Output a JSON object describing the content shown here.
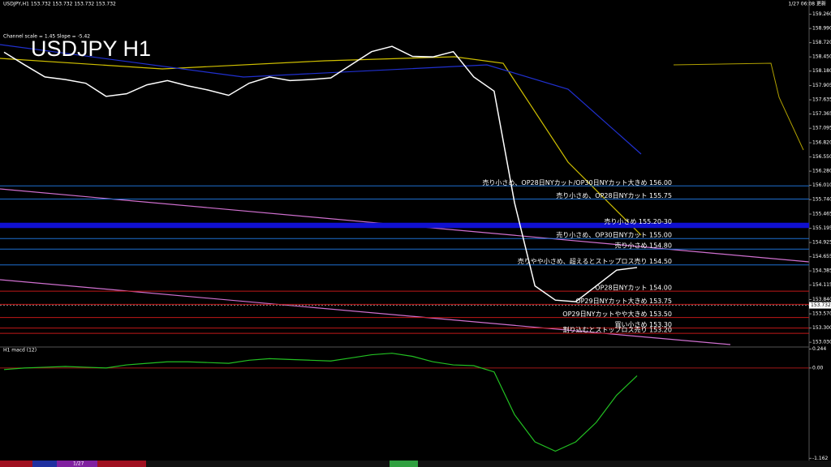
{
  "chart_data": {
    "type": "line",
    "title": "USDJPY H1",
    "header": "USDJPY,H1 153.732 153.732 153.732 153.732",
    "timestamp": "1/27 06:08 更新",
    "channel_note": "Channel scale = 1.45 Slope = -5.42",
    "date_label": "1/27",
    "color": "#ffffff",
    "values": [
      158.54,
      158.3,
      158.07,
      158.02,
      157.95,
      157.7,
      157.75,
      157.92,
      158.0,
      157.9,
      157.82,
      157.72,
      157.95,
      158.07,
      158.0,
      158.02,
      158.05,
      158.3,
      158.55,
      158.65,
      158.46,
      158.45,
      158.55,
      158.07,
      157.8,
      155.68,
      154.1,
      153.83,
      153.8,
      154.1,
      154.4,
      154.45
    ],
    "ylim": [
      152.94,
      159.5
    ],
    "yticks": [
      {
        "value": 153.03,
        "label": "153.030"
      },
      {
        "value": 153.3,
        "label": "153.300"
      },
      {
        "value": 153.57,
        "label": "153.570"
      },
      {
        "value": 153.84,
        "label": "153.840"
      },
      {
        "value": 154.115,
        "label": "154.115"
      },
      {
        "value": 154.385,
        "label": "154.385"
      },
      {
        "value": 154.655,
        "label": "154.655"
      },
      {
        "value": 154.925,
        "label": "154.925"
      },
      {
        "value": 155.195,
        "label": "155.195"
      },
      {
        "value": 155.465,
        "label": "155.465"
      },
      {
        "value": 155.74,
        "label": "155.740"
      },
      {
        "value": 156.01,
        "label": "156.010"
      },
      {
        "value": 156.28,
        "label": "156.280"
      },
      {
        "value": 156.55,
        "label": "156.550"
      },
      {
        "value": 156.82,
        "label": "156.820"
      },
      {
        "value": 157.095,
        "label": "157.095"
      },
      {
        "value": 157.365,
        "label": "157.365"
      },
      {
        "value": 157.635,
        "label": "157.635"
      },
      {
        "value": 157.905,
        "label": "157.905"
      },
      {
        "value": 158.18,
        "label": "158.180"
      },
      {
        "value": 158.45,
        "label": "158.450"
      },
      {
        "value": 158.72,
        "label": "158.720"
      },
      {
        "value": 158.99,
        "label": "158.990"
      },
      {
        "value": 159.26,
        "label": "159.260"
      }
    ],
    "current_price": 153.732,
    "levels": [
      {
        "value": 156.0,
        "label": "売り小さめ、OP28日NYカット/OP30日NYカット大きめ 156.00",
        "color": "#1e6fd0"
      },
      {
        "value": 155.75,
        "label": "売り小さめ、OP28日NYカット 155.75",
        "color": "#1e6fd0"
      },
      {
        "value": 155.0,
        "label": "売り小さめ、OP30日NYカット 155.00",
        "color": "#1e6fd0"
      },
      {
        "value": 154.8,
        "label": "売り小さめ 154.80",
        "color": "#1e6fd0"
      },
      {
        "value": 154.5,
        "label": "売りやや小さめ、超えるとストップロス売り 154.50",
        "color": "#1e6fd0"
      },
      {
        "value": 154.0,
        "label": "OP28日NYカット 154.00",
        "color": "#c01818"
      },
      {
        "value": 153.75,
        "label": "OP29日NYカット大きめ 153.75",
        "color": "#c01818"
      },
      {
        "value": 153.5,
        "label": "OP29日NYカットやや大きめ 153.50",
        "color": "#c01818"
      },
      {
        "value": 153.3,
        "label": "買い小さめ 153.30",
        "color": "#c01818"
      },
      {
        "value": 153.2,
        "label": "割り込むとストップロス売り 153.20",
        "color": "#c01818"
      }
    ],
    "band": {
      "low": 155.2,
      "high": 155.3,
      "label": "売り小さめ 155.20-30",
      "color": "#1010d0"
    },
    "macd": {
      "title": "H1 macd (12)",
      "color": "#22c022",
      "values": [
        -0.02,
        0.0,
        0.01,
        0.02,
        0.01,
        0.0,
        0.04,
        0.06,
        0.08,
        0.08,
        0.07,
        0.06,
        0.1,
        0.12,
        0.11,
        0.1,
        0.09,
        0.13,
        0.17,
        0.19,
        0.15,
        0.08,
        0.04,
        0.03,
        -0.05,
        -0.6,
        -0.95,
        -1.07,
        -0.95,
        -0.7,
        -0.35,
        -0.1
      ],
      "ylim": [
        -1.19,
        0.27
      ],
      "yticks": [
        0.244,
        {
          "value": 0,
          "label": "0.00"
        },
        -1.162
      ]
    }
  }
}
